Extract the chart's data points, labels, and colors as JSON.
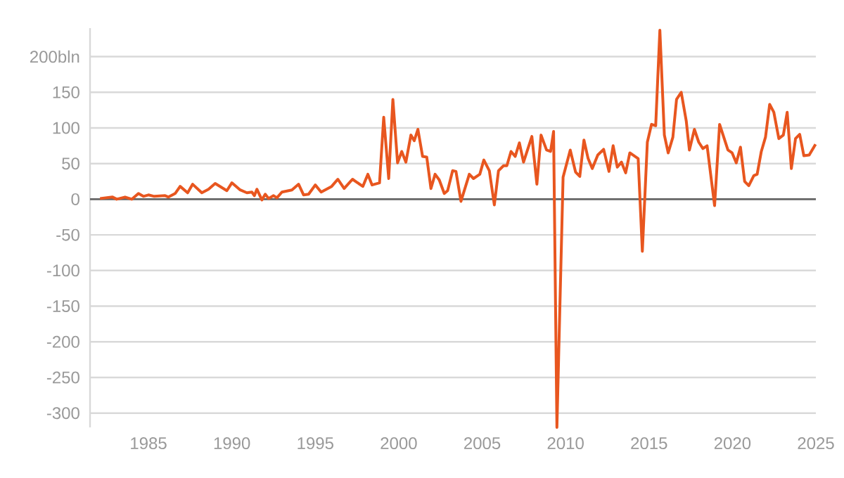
{
  "chart_data": {
    "type": "line",
    "x": [
      1982.1,
      1982.85,
      1983.1,
      1983.6,
      1984.0,
      1984.4,
      1984.7,
      1985.0,
      1985.35,
      1986.0,
      1986.2,
      1986.6,
      1986.9,
      1987.35,
      1987.65,
      1988.2,
      1988.6,
      1989.0,
      1989.7,
      1990.0,
      1990.5,
      1990.9,
      1991.2,
      1991.35,
      1991.5,
      1991.8,
      1992.0,
      1992.2,
      1992.5,
      1992.7,
      1993.0,
      1993.6,
      1994.0,
      1994.3,
      1994.6,
      1995.0,
      1995.35,
      1995.98,
      1996.35,
      1996.73,
      1997.23,
      1997.85,
      1998.15,
      1998.4,
      1998.85,
      1999.1,
      1999.4,
      1999.65,
      1999.93,
      2000.18,
      2000.43,
      2000.73,
      2000.93,
      2001.15,
      2001.43,
      2001.68,
      2001.93,
      2002.18,
      2002.43,
      2002.73,
      2002.93,
      2003.23,
      2003.43,
      2003.73,
      2004.23,
      2004.48,
      2004.86,
      2005.1,
      2005.43,
      2005.73,
      2005.98,
      2006.28,
      2006.48,
      2006.73,
      2006.98,
      2007.23,
      2007.48,
      2007.98,
      2008.28,
      2008.53,
      2008.86,
      2009.1,
      2009.28,
      2009.48,
      2009.85,
      2010.28,
      2010.6,
      2010.85,
      2011.1,
      2011.35,
      2011.6,
      2011.93,
      2012.28,
      2012.6,
      2012.85,
      2013.1,
      2013.35,
      2013.6,
      2013.85,
      2014.35,
      2014.6,
      2014.9,
      2015.15,
      2015.4,
      2015.65,
      2015.92,
      2016.15,
      2016.43,
      2016.65,
      2016.93,
      2017.23,
      2017.42,
      2017.72,
      2017.98,
      2018.23,
      2018.48,
      2018.93,
      2019.23,
      2019.73,
      2019.98,
      2020.23,
      2020.48,
      2020.73,
      2020.98,
      2021.28,
      2021.48,
      2021.73,
      2021.98,
      2022.23,
      2022.48,
      2022.78,
      2023.05,
      2023.28,
      2023.53,
      2023.78,
      2024.03,
      2024.28,
      2024.6,
      2024.98
    ],
    "series": [
      {
        "color": "#e8561f",
        "values": [
          1,
          3,
          0,
          3,
          0,
          8,
          4,
          6,
          4,
          5,
          3,
          8,
          18,
          9,
          21,
          9,
          14,
          22,
          12,
          23,
          13,
          9,
          10,
          5,
          14,
          -1,
          7,
          1,
          5,
          2,
          10,
          13,
          21,
          6,
          7,
          20,
          10,
          18,
          28,
          15,
          28,
          18,
          35,
          20,
          23,
          115,
          29,
          140,
          51,
          67,
          52,
          90,
          82,
          98,
          60,
          59,
          15,
          35,
          27,
          8,
          12,
          40,
          39,
          -3,
          35,
          29,
          35,
          55,
          40,
          -8,
          40,
          47,
          47,
          67,
          60,
          79,
          52,
          88,
          21,
          90,
          69,
          67,
          95,
          -320,
          31,
          69,
          38,
          32,
          83,
          57,
          43,
          62,
          70,
          39,
          75,
          45,
          52,
          37,
          65,
          57,
          -73,
          80,
          105,
          103,
          237,
          90,
          65,
          87,
          140,
          150,
          110,
          69,
          98,
          80,
          71,
          75,
          -9,
          105,
          69,
          65,
          51,
          73,
          25,
          19,
          33,
          35,
          67,
          87,
          133,
          122,
          85,
          90,
          122,
          43,
          85,
          91,
          61,
          62,
          77
        ]
      }
    ],
    "xlim": [
      1981.5,
      2025
    ],
    "xticks": [
      1985,
      1990,
      1995,
      2000,
      2005,
      2010,
      2015,
      2020,
      2025
    ],
    "ylim": [
      -320,
      240
    ],
    "yticks": [
      {
        "value": 200,
        "label": "200bln"
      },
      150,
      100,
      50,
      0,
      -50,
      -100,
      -150,
      -200,
      -250,
      -300
    ],
    "grid": "y",
    "ref_lines": [
      {
        "axis": "y",
        "value": 0,
        "color": "#666666"
      }
    ]
  }
}
